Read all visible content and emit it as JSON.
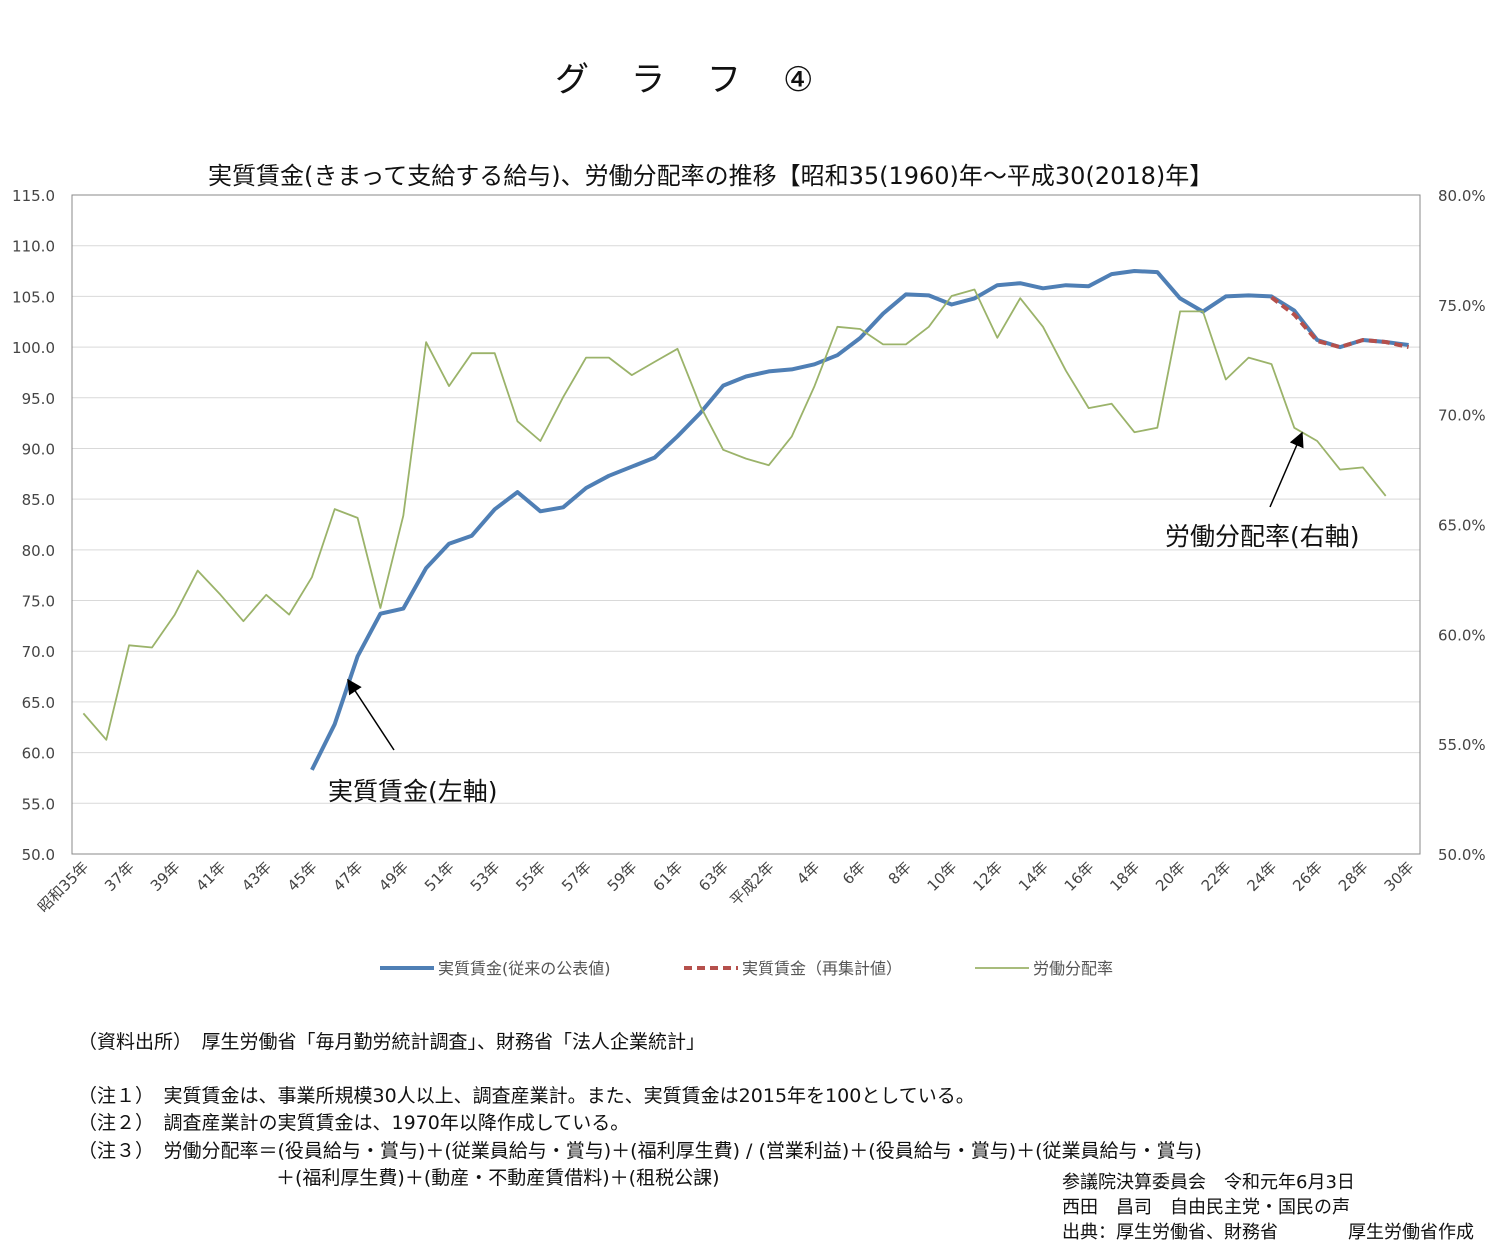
{
  "header": {
    "title": "グ　ラ　フ　④"
  },
  "chart_data": {
    "type": "line",
    "title": "実質賃金(きまって支給する給与)、労働分配率の推移【昭和35(1960)年～平成30(2018)年】",
    "x": [
      1960,
      1961,
      1962,
      1963,
      1964,
      1965,
      1966,
      1967,
      1968,
      1969,
      1970,
      1971,
      1972,
      1973,
      1974,
      1975,
      1976,
      1977,
      1978,
      1979,
      1980,
      1981,
      1982,
      1983,
      1984,
      1985,
      1986,
      1987,
      1988,
      1989,
      1990,
      1991,
      1992,
      1993,
      1994,
      1995,
      1996,
      1997,
      1998,
      1999,
      2000,
      2001,
      2002,
      2003,
      2004,
      2005,
      2006,
      2007,
      2008,
      2009,
      2010,
      2011,
      2012,
      2013,
      2014,
      2015,
      2016,
      2017,
      2018
    ],
    "x_tick_labels": [
      "昭和35年",
      "37年",
      "39年",
      "41年",
      "43年",
      "45年",
      "47年",
      "49年",
      "51年",
      "53年",
      "55年",
      "57年",
      "59年",
      "61年",
      "63年",
      "平成2年",
      "4年",
      "6年",
      "8年",
      "10年",
      "12年",
      "14年",
      "16年",
      "18年",
      "20年",
      "22年",
      "24年",
      "26年",
      "28年",
      "30年"
    ],
    "y_left": {
      "ylim": [
        50,
        115
      ],
      "ticks": [
        "115.0",
        "110.0",
        "105.0",
        "100.0",
        "95.0",
        "90.0",
        "85.0",
        "80.0",
        "75.0",
        "70.0",
        "65.0",
        "60.0",
        "55.0",
        "50.0"
      ]
    },
    "y_right": {
      "ylim": [
        50,
        80
      ],
      "ticks": [
        "80.0%",
        "75.0%",
        "70.0%",
        "65.0%",
        "60.0%",
        "55.0%",
        "50.0%"
      ]
    },
    "grid": true,
    "legend_position": "bottom",
    "series": [
      {
        "name": "実質賃金(従来の公表値)",
        "axis": "left",
        "color": "#4f7fb5",
        "style": "solid",
        "values": [
          null,
          null,
          null,
          null,
          null,
          null,
          null,
          null,
          null,
          null,
          58.3,
          62.8,
          69.5,
          73.7,
          74.2,
          78.2,
          80.6,
          81.4,
          84.0,
          85.7,
          83.8,
          84.2,
          86.1,
          87.3,
          88.2,
          89.1,
          91.2,
          93.5,
          96.2,
          97.1,
          97.6,
          97.8,
          98.3,
          99.2,
          100.9,
          103.3,
          105.2,
          105.1,
          104.2,
          104.8,
          106.1,
          106.3,
          105.8,
          106.1,
          106.0,
          107.2,
          107.5,
          107.4,
          104.8,
          103.5,
          105.0,
          105.1,
          105.0,
          103.6,
          100.7,
          100.0,
          100.7,
          100.5,
          100.2
        ]
      },
      {
        "name": "実質賃金（再集計値）",
        "axis": "left",
        "color": "#b5504c",
        "style": "dashed",
        "values": [
          null,
          null,
          null,
          null,
          null,
          null,
          null,
          null,
          null,
          null,
          null,
          null,
          null,
          null,
          null,
          null,
          null,
          null,
          null,
          null,
          null,
          null,
          null,
          null,
          null,
          null,
          null,
          null,
          null,
          null,
          null,
          null,
          null,
          null,
          null,
          null,
          null,
          null,
          null,
          null,
          null,
          null,
          null,
          null,
          null,
          null,
          null,
          null,
          null,
          null,
          null,
          null,
          104.9,
          103.2,
          100.6,
          100.0,
          100.7,
          100.5,
          100.0
        ]
      },
      {
        "name": "労働分配率",
        "axis": "right",
        "color": "#9bb36a",
        "style": "solid",
        "values": [
          56.4,
          55.2,
          59.5,
          59.4,
          60.9,
          62.9,
          61.8,
          60.6,
          61.8,
          60.9,
          62.6,
          65.7,
          65.3,
          61.2,
          65.4,
          73.3,
          71.3,
          72.8,
          72.8,
          69.7,
          68.8,
          70.8,
          72.6,
          72.6,
          71.8,
          72.4,
          73.0,
          70.4,
          68.4,
          68.0,
          67.7,
          69.0,
          71.3,
          74.0,
          73.9,
          73.2,
          73.2,
          74.0,
          75.4,
          75.7,
          73.5,
          75.3,
          74.0,
          72.0,
          70.3,
          70.5,
          69.2,
          69.4,
          74.7,
          74.7,
          71.6,
          72.6,
          72.3,
          69.4,
          68.8,
          67.5,
          67.6,
          66.3,
          null
        ]
      }
    ],
    "annotations": [
      "実質賃金(左軸)",
      "労働分配率(右軸)"
    ]
  },
  "notes": {
    "source": "（資料出所）　厚生労働省「毎月勤労統計調査」、財務省「法人企業統計」",
    "note1": "（注１）　実質賃金は、事業所規模30人以上、調査産業計。また、実質賃金は2015年を100としている。",
    "note2": "（注２）　調査産業計の実質賃金は、1970年以降作成している。",
    "note3a": "（注３）　労働分配率＝(役員給与・賞与)＋(従業員給与・賞与)＋(福利厚生費) / (営業利益)＋(役員給与・賞与)＋(従業員給与・賞与)",
    "note3b": "＋(福利厚生費)＋(動産・不動産賃借料)＋(租税公課)"
  },
  "credits": {
    "line1": "参議院決算委員会　令和元年6月3日",
    "line2": "西田　昌司　自由民主党・国民の声",
    "line3": "出典：厚生労働省、財務省",
    "line4": "厚生労働省作成"
  }
}
